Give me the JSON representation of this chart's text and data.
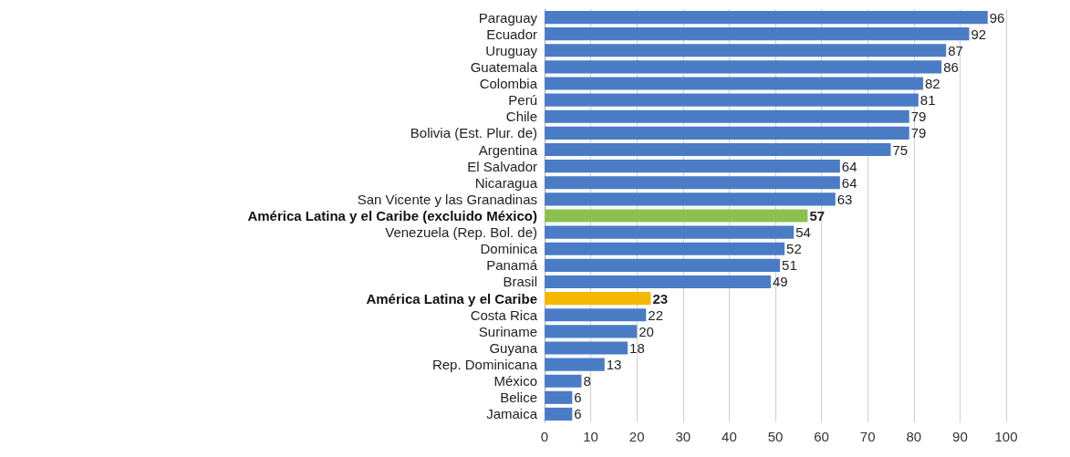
{
  "chart_data": {
    "type": "bar",
    "orientation": "horizontal",
    "categories": [
      "Paraguay",
      "Ecuador",
      "Uruguay",
      "Guatemala",
      "Colombia",
      "Perú",
      "Chile",
      "Bolivia (Est. Plur. de)",
      "Argentina",
      "El Salvador",
      "Nicaragua",
      "San Vicente y las Granadinas",
      "América Latina y el Caribe (excluido México)",
      "Venezuela (Rep. Bol. de)",
      "Dominica",
      "Panamá",
      "Brasil",
      "América Latina y el Caribe",
      "Costa Rica",
      "Suriname",
      "Guyana",
      "Rep. Dominicana",
      "México",
      "Belice",
      "Jamaica"
    ],
    "values": [
      96,
      92,
      87,
      86,
      82,
      81,
      79,
      79,
      75,
      64,
      64,
      63,
      57,
      54,
      52,
      51,
      49,
      23,
      22,
      20,
      18,
      13,
      8,
      6,
      6
    ],
    "colors": [
      "#4a7cc6",
      "#4a7cc6",
      "#4a7cc6",
      "#4a7cc6",
      "#4a7cc6",
      "#4a7cc6",
      "#4a7cc6",
      "#4a7cc6",
      "#4a7cc6",
      "#4a7cc6",
      "#4a7cc6",
      "#4a7cc6",
      "#8cc152",
      "#4a7cc6",
      "#4a7cc6",
      "#4a7cc6",
      "#4a7cc6",
      "#f5b800",
      "#4a7cc6",
      "#4a7cc6",
      "#4a7cc6",
      "#4a7cc6",
      "#4a7cc6",
      "#4a7cc6",
      "#4a7cc6"
    ],
    "xlim": [
      0,
      100
    ],
    "xticks": [
      0,
      10,
      20,
      30,
      40,
      50,
      60,
      70,
      80,
      90,
      100
    ],
    "grid": "x",
    "data_labels": true
  }
}
